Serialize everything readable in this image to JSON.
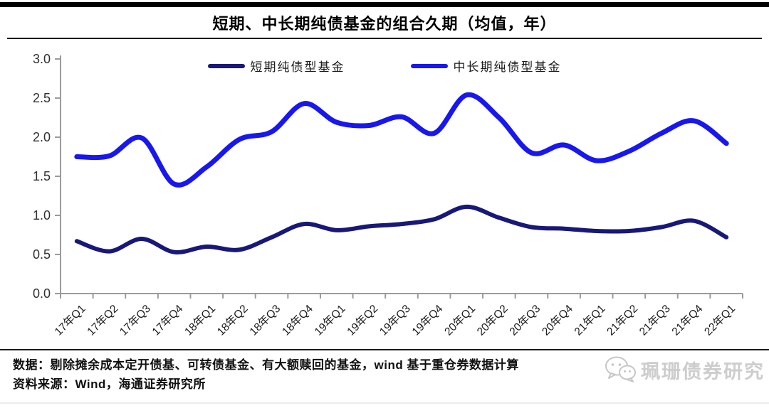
{
  "title": "短期、中长期纯债基金的组合久期（均值，年）",
  "chart_data": {
    "type": "line",
    "title": "短期、中长期纯债基金的组合久期（均值，年）",
    "categories": [
      "17年Q1",
      "17年Q2",
      "17年Q3",
      "17年Q4",
      "18年Q1",
      "18年Q2",
      "18年Q3",
      "18年Q4",
      "19年Q1",
      "19年Q2",
      "19年Q3",
      "19年Q4",
      "20年Q1",
      "20年Q2",
      "20年Q3",
      "20年Q4",
      "21年Q1",
      "21年Q2",
      "21年Q3",
      "21年Q4",
      "22年Q1"
    ],
    "series": [
      {
        "name": "短期纯债型基金",
        "color": "#181878",
        "values": [
          0.67,
          0.54,
          0.7,
          0.53,
          0.6,
          0.56,
          0.72,
          0.89,
          0.81,
          0.86,
          0.89,
          0.95,
          1.11,
          0.97,
          0.85,
          0.83,
          0.8,
          0.8,
          0.85,
          0.93,
          0.72
        ]
      },
      {
        "name": "中长期纯债型基金",
        "color": "#1717ee",
        "values": [
          1.75,
          1.76,
          1.99,
          1.4,
          1.62,
          1.97,
          2.07,
          2.43,
          2.19,
          2.15,
          2.26,
          2.05,
          2.54,
          2.25,
          1.8,
          1.9,
          1.7,
          1.82,
          2.05,
          2.21,
          1.92
        ]
      }
    ],
    "ylim": [
      0,
      3
    ],
    "yticks": [
      "0.0",
      "0.5",
      "1.0",
      "1.5",
      "2.0",
      "2.5",
      "3.0"
    ],
    "xlabel": "",
    "ylabel": "",
    "grid": false,
    "legend_position": "top-center",
    "x_label_rotation": -45
  },
  "colors": {
    "axis": "#9b9b9b",
    "tick_label": "#303030",
    "rule": "#000000",
    "watermark": "#cbcbcb"
  },
  "footer": {
    "line1": "数据：剔除摊余成本定开债基、可转债基金、有大额赎回的基金，wind 基于重仓券数据计算",
    "line2": "资料来源：Wind，海通证券研究所"
  },
  "watermark": {
    "text": "珮珊债券研究",
    "icon": "wechat-icon"
  }
}
